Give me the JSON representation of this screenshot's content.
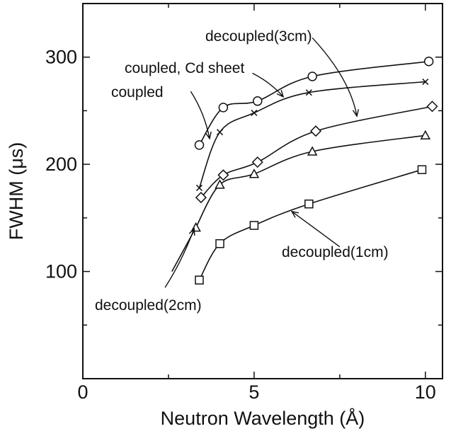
{
  "chart_data": {
    "type": "scatter",
    "title": "",
    "xlabel": "Neutron Wavelength (Å)",
    "ylabel": "FWHM (μs)",
    "xlim": [
      0,
      10.5
    ],
    "ylim": [
      0,
      350
    ],
    "x_ticks": [
      {
        "value": 0,
        "label": "0"
      },
      {
        "value": 5,
        "label": "5"
      },
      {
        "value": 10,
        "label": "10"
      }
    ],
    "y_ticks": [
      {
        "value": 100,
        "label": "100"
      },
      {
        "value": 200,
        "label": "200"
      },
      {
        "value": 300,
        "label": "300"
      }
    ],
    "grid": false,
    "legend": "none",
    "series": [
      {
        "marker": "circle",
        "points": [
          [
            3.4,
            218
          ],
          [
            4.1,
            253
          ],
          [
            5.1,
            259
          ],
          [
            6.7,
            282
          ],
          [
            10.1,
            296
          ]
        ]
      },
      {
        "marker": "x",
        "points": [
          [
            3.4,
            178
          ],
          [
            4.0,
            230
          ],
          [
            5.0,
            248
          ],
          [
            6.6,
            267
          ],
          [
            10.0,
            277
          ]
        ]
      },
      {
        "marker": "diamond",
        "points": [
          [
            3.45,
            169
          ],
          [
            4.1,
            190
          ],
          [
            5.1,
            202
          ],
          [
            6.8,
            231
          ],
          [
            10.2,
            254
          ]
        ]
      },
      {
        "marker": "triangle",
        "points": [
          [
            3.3,
            141
          ],
          [
            4.0,
            181
          ],
          [
            5.0,
            191
          ],
          [
            6.7,
            212
          ],
          [
            10.0,
            227
          ]
        ]
      },
      {
        "marker": "square",
        "points": [
          [
            3.4,
            92
          ],
          [
            4.0,
            126
          ],
          [
            5.0,
            143
          ],
          [
            6.6,
            163
          ],
          [
            9.9,
            195
          ]
        ]
      }
    ],
    "annotations": [
      {
        "text": "decoupled(3cm)"
      },
      {
        "text": "coupled, Cd sheet"
      },
      {
        "text": "coupled"
      },
      {
        "text": "decoupled(1cm)"
      },
      {
        "text": "decoupled(2cm)"
      }
    ]
  }
}
